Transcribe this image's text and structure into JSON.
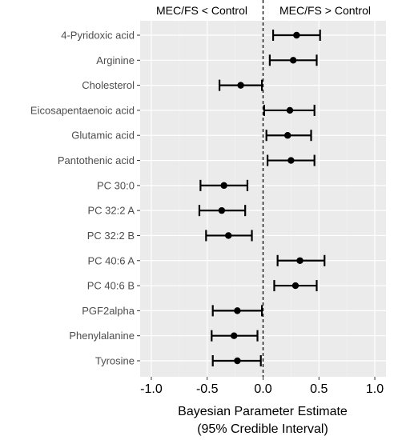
{
  "chart_data": {
    "type": "scatter",
    "subtype": "forest-plot-point-with-error-bars",
    "top_labels": {
      "left": "MEC/FS < Control",
      "right": "MEC/FS > Control"
    },
    "xlabel_line1": "Bayesian Parameter Estimate",
    "xlabel_line2": "(95% Credible  Interval)",
    "xlim": [
      -1.1,
      1.1
    ],
    "xticks": [
      -1.0,
      -0.5,
      0.0,
      0.5,
      1.0
    ],
    "xtick_labels": [
      "-1.0",
      "-0.5",
      "0.0",
      "0.5",
      "1.0"
    ],
    "reference_line": 0.0,
    "grid": true,
    "categories": [
      "4-Pyridoxic acid",
      "Arginine",
      "Cholesterol",
      "Eicosapentaenoic acid",
      "Glutamic acid",
      "Pantothenic acid",
      "PC 30:0",
      "PC 32:2 A",
      "PC 32:2 B",
      "PC 40:6 A",
      "PC 40:6 B",
      "PGF2alpha",
      "Phenylalanine",
      "Tyrosine"
    ],
    "estimates": [
      0.3,
      0.27,
      -0.2,
      0.24,
      0.22,
      0.25,
      -0.35,
      -0.37,
      -0.31,
      0.33,
      0.29,
      -0.23,
      -0.26,
      -0.23
    ],
    "lower": [
      0.09,
      0.06,
      -0.39,
      0.01,
      0.03,
      0.04,
      -0.56,
      -0.57,
      -0.51,
      0.13,
      0.1,
      -0.45,
      -0.46,
      -0.45
    ],
    "upper": [
      0.51,
      0.48,
      -0.01,
      0.46,
      0.43,
      0.46,
      -0.14,
      -0.16,
      -0.1,
      0.55,
      0.48,
      -0.01,
      -0.05,
      -0.02
    ],
    "colors": {
      "panel_bg": "#ebebeb",
      "grid_major": "#ffffff",
      "grid_minor": "#f2f2f2",
      "mark": "#000000",
      "tick_text": "#4d4d4d"
    }
  }
}
